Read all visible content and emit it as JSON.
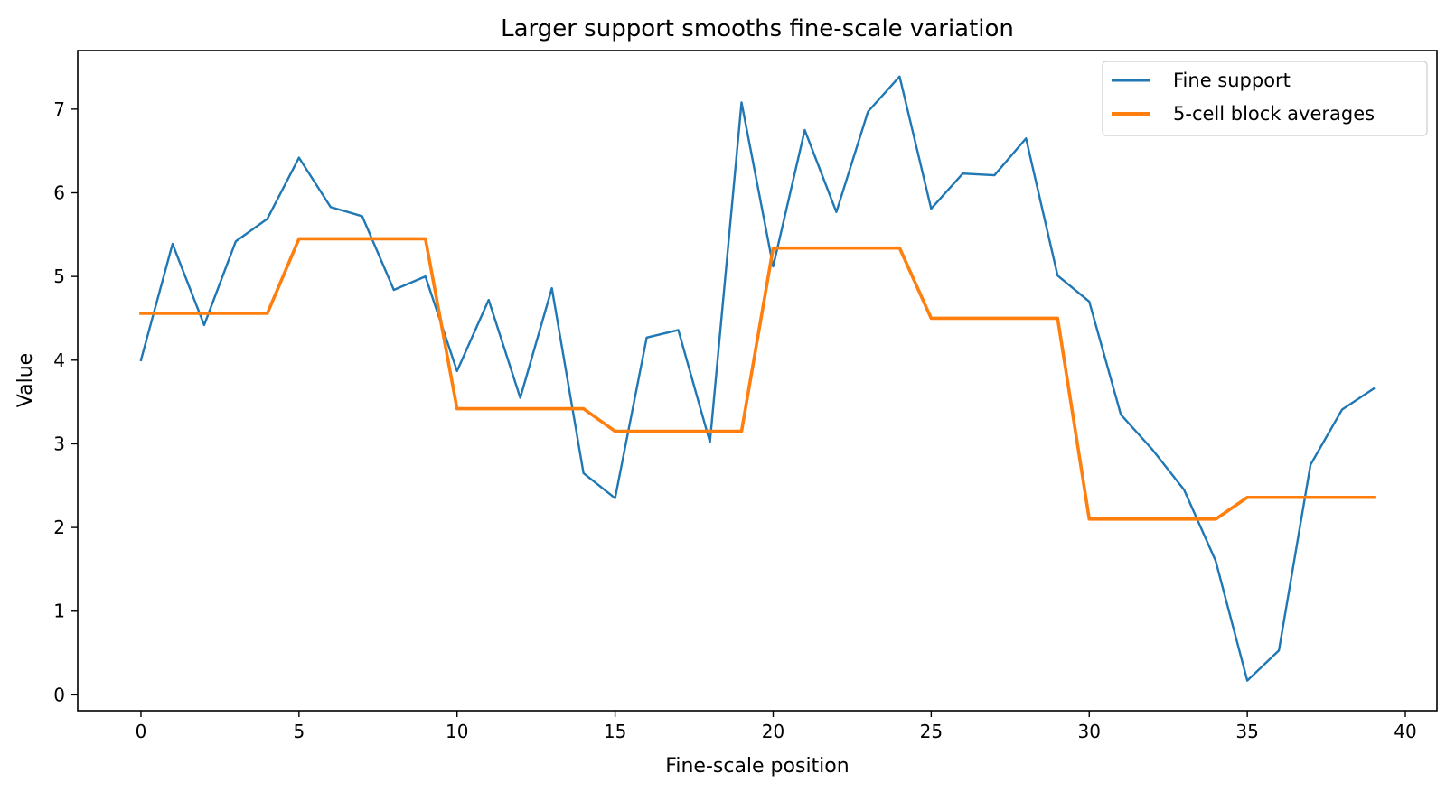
{
  "chart_data": {
    "type": "line",
    "title": "Larger support smooths fine-scale variation",
    "xlabel": "Fine-scale position",
    "ylabel": "Value",
    "xlim": [
      -2,
      41
    ],
    "ylim": [
      -0.19,
      7.7
    ],
    "xticks": [
      0,
      5,
      10,
      15,
      20,
      25,
      30,
      35,
      40
    ],
    "yticks": [
      0,
      1,
      2,
      3,
      4,
      5,
      6,
      7
    ],
    "grid": false,
    "legend_position": "top-right",
    "x": [
      0,
      1,
      2,
      3,
      4,
      5,
      6,
      7,
      8,
      9,
      10,
      11,
      12,
      13,
      14,
      15,
      16,
      17,
      18,
      19,
      20,
      21,
      22,
      23,
      24,
      25,
      26,
      27,
      28,
      29,
      30,
      31,
      32,
      33,
      34,
      35,
      36,
      37,
      38,
      39
    ],
    "series": [
      {
        "name": "Fine support",
        "color": "#1f77b4",
        "values": [
          4.0,
          5.39,
          4.42,
          5.42,
          5.69,
          6.42,
          5.83,
          5.72,
          4.84,
          5.0,
          3.87,
          4.72,
          3.55,
          4.86,
          2.65,
          2.35,
          4.27,
          4.36,
          3.02,
          7.08,
          5.12,
          6.75,
          5.77,
          6.97,
          7.39,
          5.81,
          6.23,
          6.21,
          6.65,
          5.01,
          4.7,
          3.35,
          2.93,
          2.45,
          1.6,
          0.17,
          0.53,
          2.75,
          3.41,
          3.66
        ]
      },
      {
        "name": "5-cell block averages",
        "color": "#ff7f0e",
        "values": [
          4.56,
          4.56,
          4.56,
          4.56,
          4.56,
          5.45,
          5.45,
          5.45,
          5.45,
          5.45,
          3.42,
          3.42,
          3.42,
          3.42,
          3.42,
          3.15,
          3.15,
          3.15,
          3.15,
          3.15,
          5.34,
          5.34,
          5.34,
          5.34,
          5.34,
          4.5,
          4.5,
          4.5,
          4.5,
          4.5,
          2.1,
          2.1,
          2.1,
          2.1,
          2.1,
          2.36,
          2.36,
          2.36,
          2.36,
          2.36
        ]
      }
    ]
  }
}
